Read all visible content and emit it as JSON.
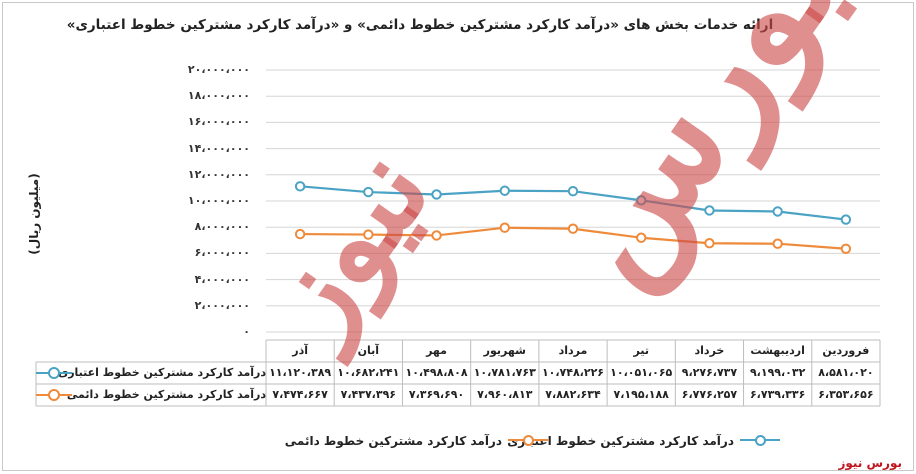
{
  "title": "ارائه خدمات بخش های «درآمد کارکرد مشترکین خطوط دائمی» و «درآمد کارکرد مشترکین خطوط اعتباری»",
  "watermark": {
    "line1": "بورس",
    "line2": "نیوز"
  },
  "brand": "بورس نیوز",
  "colors": {
    "series1": "#4aa3c4",
    "series2": "#ee8a3a",
    "grid": "#d5d5d5",
    "watermark": "#cd4b4b"
  },
  "chart_data": {
    "type": "line",
    "ylabel": "(میلیون ریال)",
    "ylim": [
      0,
      20000000
    ],
    "yticks": [
      "۰",
      "۲،۰۰۰،۰۰۰",
      "۴،۰۰۰،۰۰۰",
      "۶،۰۰۰،۰۰۰",
      "۸،۰۰۰،۰۰۰",
      "۱۰،۰۰۰،۰۰۰",
      "۱۲،۰۰۰،۰۰۰",
      "۱۴،۰۰۰،۰۰۰",
      "۱۶،۰۰۰،۰۰۰",
      "۱۸،۰۰۰،۰۰۰",
      "۲۰،۰۰۰،۰۰۰"
    ],
    "grid": true,
    "legend_position": "bottom",
    "categories": [
      "فروردین",
      "اردیبهشت",
      "خرداد",
      "تیر",
      "مرداد",
      "شهریور",
      "مهر",
      "آبان",
      "آذر"
    ],
    "series": [
      {
        "name": "درآمد کارکرد مشترکین خطوط اعتباری",
        "values": [
          8581020,
          9199032,
          9276737,
          10051065,
          10748226,
          10781763,
          10498808,
          10682241,
          11120389
        ],
        "labels": [
          "۸،۵۸۱،۰۲۰",
          "۹،۱۹۹،۰۳۲",
          "۹،۲۷۶،۷۳۷",
          "۱۰،۰۵۱،۰۶۵",
          "۱۰،۷۴۸،۲۲۶",
          "۱۰،۷۸۱،۷۶۳",
          "۱۰،۴۹۸،۸۰۸",
          "۱۰،۶۸۲،۲۴۱",
          "۱۱،۱۲۰،۳۸۹"
        ]
      },
      {
        "name": "درآمد کارکرد مشترکین خطوط دائمی",
        "values": [
          6353656,
          6739336,
          6776257,
          7195188,
          7882634,
          7960813,
          7369690,
          7437396,
          7474667
        ],
        "labels": [
          "۶،۳۵۳،۶۵۶",
          "۶،۷۳۹،۳۳۶",
          "۶،۷۷۶،۲۵۷",
          "۷،۱۹۵،۱۸۸",
          "۷،۸۸۲،۶۳۴",
          "۷،۹۶۰،۸۱۳",
          "۷،۳۶۹،۶۹۰",
          "۷،۴۳۷،۳۹۶",
          "۷،۴۷۴،۶۶۷"
        ]
      }
    ]
  }
}
